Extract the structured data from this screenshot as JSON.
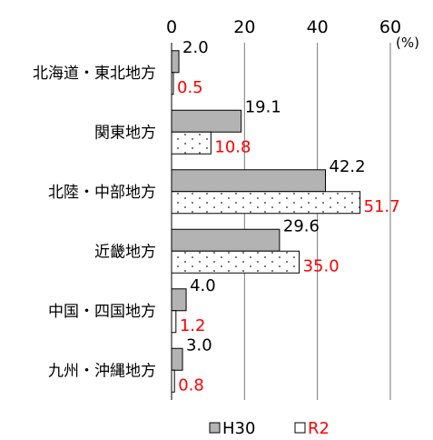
{
  "chart_data": {
    "type": "bar",
    "orientation": "horizontal",
    "unit": "(%)",
    "xlim": [
      0,
      60
    ],
    "ticks": [
      "0",
      "20",
      "40",
      "60"
    ],
    "grid": true,
    "legend_placement": "bottom",
    "categories": [
      "北海道・東北地方",
      "関東地方",
      "北陸・中部地方",
      "近畿地方",
      "中国・四国地方",
      "九州・沖縄地方"
    ],
    "series": [
      {
        "name": "H30",
        "values": [
          2.0,
          19.1,
          42.2,
          29.6,
          4.0,
          3.0
        ],
        "labels": [
          "2.0",
          "19.1",
          "42.2",
          "29.6",
          "4.0",
          "3.0"
        ],
        "fill": "#b3b3b3",
        "label_color": "#000000"
      },
      {
        "name": "R2",
        "values": [
          0.5,
          10.8,
          51.7,
          35.0,
          1.2,
          0.8
        ],
        "labels": [
          "0.5",
          "10.8",
          "51.7",
          "35.0",
          "1.2",
          "0.8"
        ],
        "fill": "dotted-white",
        "label_color": "#ff0000"
      }
    ]
  }
}
